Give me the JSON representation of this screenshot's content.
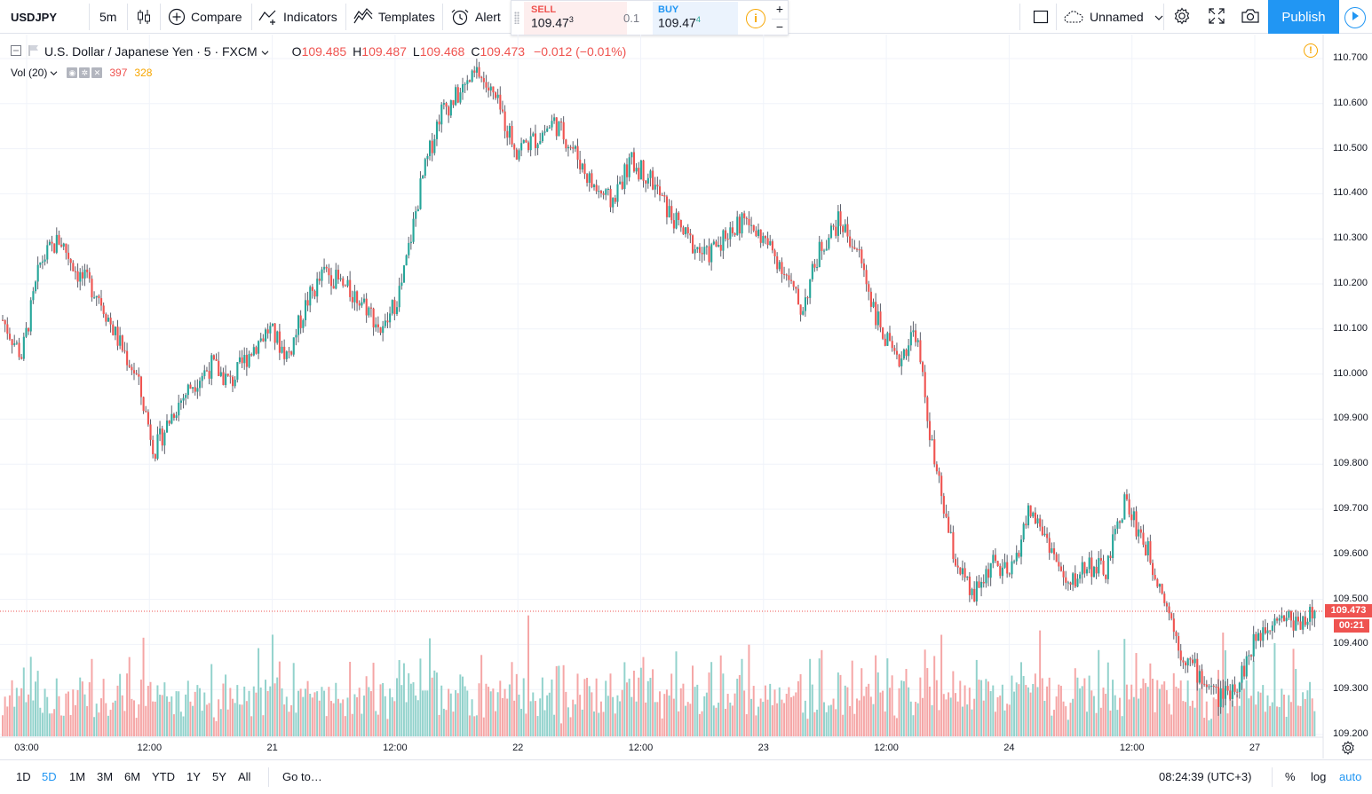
{
  "toolbar": {
    "symbol": "USDJPY",
    "interval": "5m",
    "compare_label": "Compare",
    "indicators_label": "Indicators",
    "templates_label": "Templates",
    "alert_label": "Alert",
    "sell_label": "SELL",
    "sell_price": "109.47",
    "sell_price_sup": "3",
    "spread": "0.1",
    "buy_label": "BUY",
    "buy_price": "109.47",
    "buy_price_sup": "4",
    "info_icon": "i",
    "qty_plus": "+",
    "qty_minus": "−",
    "layout_name": "Unnamed",
    "publish_label": "Publish"
  },
  "legend": {
    "instrument": "U.S. Dollar / Japanese Yen · 5 · FXCM",
    "o_key": "O",
    "o_val": "109.485",
    "h_key": "H",
    "h_val": "109.487",
    "l_key": "L",
    "l_val": "109.468",
    "c_key": "C",
    "c_val": "109.473",
    "change": "−0.012 (−0.01%)"
  },
  "volume_legend": {
    "name": "Vol (20)",
    "value_down": "397",
    "value_up": "328"
  },
  "colors": {
    "up": "#26a69a",
    "down": "#ef5350",
    "wick": "#5d606b",
    "vol_up": "#92d2cc",
    "vol_down": "#f5a6a6",
    "grid": "#f0f3fa",
    "accent": "#2196f3",
    "warning": "#f7a600"
  },
  "price_axis": {
    "labels": [
      "110.700",
      "110.600",
      "110.500",
      "110.400",
      "110.300",
      "110.200",
      "110.100",
      "110.000",
      "109.900",
      "109.800",
      "109.700",
      "109.600",
      "109.500",
      "109.400",
      "109.300",
      "109.200"
    ],
    "last_price": "109.473",
    "countdown": "00:21"
  },
  "time_axis": {
    "labels": [
      "03:00",
      "12:00",
      "21",
      "12:00",
      "22",
      "12:00",
      "23",
      "12:00",
      "24",
      "12:00",
      "27"
    ]
  },
  "chart_data": {
    "type": "candlestick",
    "symbol": "USDJPY",
    "interval": "5",
    "ylim": [
      109.2,
      110.72
    ],
    "price_path": [
      [
        "03:00",
        110.12
      ],
      [
        "",
        110.04
      ],
      [
        "",
        110.25
      ],
      [
        "",
        110.3
      ],
      [
        "",
        110.22
      ],
      [
        "",
        110.18
      ],
      [
        "",
        110.08
      ],
      [
        "12:00",
        110.0
      ],
      [
        "",
        109.83
      ],
      [
        "",
        109.92
      ],
      [
        "",
        109.98
      ],
      [
        "",
        110.02
      ],
      [
        "",
        109.98
      ],
      [
        "",
        110.05
      ],
      [
        "",
        110.1
      ],
      [
        "21",
        110.04
      ],
      [
        "",
        110.16
      ],
      [
        "",
        110.23
      ],
      [
        "",
        110.19
      ],
      [
        "",
        110.16
      ],
      [
        "",
        110.09
      ],
      [
        "12:00",
        110.2
      ],
      [
        "",
        110.42
      ],
      [
        "",
        110.58
      ],
      [
        "",
        110.62
      ],
      [
        "",
        110.67
      ],
      [
        "",
        110.6
      ],
      [
        "",
        110.5
      ],
      [
        "22",
        110.52
      ],
      [
        "",
        110.56
      ],
      [
        "",
        110.5
      ],
      [
        "",
        110.42
      ],
      [
        "",
        110.38
      ],
      [
        "",
        110.47
      ],
      [
        "12:00",
        110.44
      ],
      [
        "",
        110.36
      ],
      [
        "",
        110.3
      ],
      [
        "",
        110.26
      ],
      [
        "",
        110.31
      ],
      [
        "",
        110.34
      ],
      [
        "23",
        110.3
      ],
      [
        "",
        110.24
      ],
      [
        "",
        110.14
      ],
      [
        "",
        110.28
      ],
      [
        "",
        110.34
      ],
      [
        "",
        110.27
      ],
      [
        "12:00",
        110.12
      ],
      [
        "",
        110.02
      ],
      [
        "",
        110.1
      ],
      [
        "",
        109.8
      ],
      [
        "",
        109.6
      ],
      [
        "",
        109.5
      ],
      [
        "24",
        109.58
      ],
      [
        "",
        109.55
      ],
      [
        "",
        109.7
      ],
      [
        "",
        109.63
      ],
      [
        "",
        109.52
      ],
      [
        "",
        109.58
      ],
      [
        "12:00",
        109.56
      ],
      [
        "",
        109.72
      ],
      [
        "",
        109.63
      ],
      [
        "",
        109.52
      ],
      [
        "",
        109.38
      ],
      [
        "",
        109.33
      ],
      [
        "",
        109.28
      ],
      [
        "27",
        109.32
      ],
      [
        "",
        109.42
      ],
      [
        "",
        109.47
      ],
      [
        "",
        109.45
      ],
      [
        "",
        109.47
      ]
    ],
    "volume_ylim": [
      0,
      200
    ]
  },
  "bottom_bar": {
    "ranges": [
      "1D",
      "5D",
      "1M",
      "3M",
      "6M",
      "YTD",
      "1Y",
      "5Y",
      "All"
    ],
    "active_range": "5D",
    "goto_label": "Go to…",
    "clock": "08:24:39 (UTC+3)",
    "pct_label": "%",
    "log_label": "log",
    "auto_label": "auto"
  }
}
